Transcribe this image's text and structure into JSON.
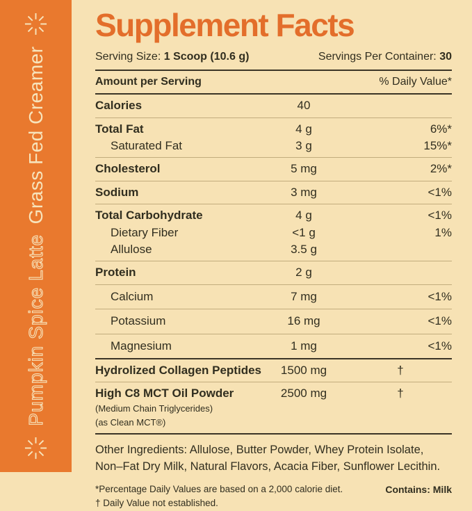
{
  "colors": {
    "accent": "#E9792E",
    "title_orange": "#E36E2B",
    "background": "#F7E2B4",
    "ink": "#312E1F",
    "rule_thin": "#C2AC7D",
    "rule_thick": "#3B3426",
    "sidebar_text": "#F7E4BC"
  },
  "sidebar": {
    "flavor": "Pumpkin Spice Latte",
    "product": "Grass Fed Creamer",
    "star_icon": "starburst-asterisk"
  },
  "header": {
    "title": "Supplement Facts",
    "serving_size_label": "Serving Size:",
    "serving_size_value": "1 Scoop (10.6 g)",
    "servings_label": "Servings Per Container:",
    "servings_value": "30"
  },
  "table": {
    "header": {
      "left": "Amount per Serving",
      "right": "% Daily Value*"
    },
    "rows": [
      {
        "name": "Calories",
        "amount": "40",
        "dv": "",
        "bold": true,
        "indent": false,
        "divider_after": "thin"
      },
      {
        "name": "Total Fat",
        "amount": "4 g",
        "dv": "6%*",
        "bold": true,
        "indent": false,
        "divider_after": "none"
      },
      {
        "name": "Saturated Fat",
        "amount": "3 g",
        "dv": "15%*",
        "bold": false,
        "indent": true,
        "divider_after": "thin"
      },
      {
        "name": "Cholesterol",
        "amount": "5 mg",
        "dv": "2%*",
        "bold": true,
        "indent": false,
        "divider_after": "thin"
      },
      {
        "name": "Sodium",
        "amount": "3 mg",
        "dv": "<1%",
        "bold": true,
        "indent": false,
        "divider_after": "thin"
      },
      {
        "name": "Total Carbohydrate",
        "amount": "4 g",
        "dv": "<1%",
        "bold": true,
        "indent": false,
        "divider_after": "none"
      },
      {
        "name": "Dietary Fiber",
        "amount": "<1 g",
        "dv": "1%",
        "bold": false,
        "indent": true,
        "divider_after": "none"
      },
      {
        "name": "Allulose",
        "amount": "3.5 g",
        "dv": "",
        "bold": false,
        "indent": true,
        "divider_after": "thin"
      },
      {
        "name": "Protein",
        "amount": "2 g",
        "dv": "",
        "bold": true,
        "indent": false,
        "divider_after": "thin"
      },
      {
        "name": "Calcium",
        "amount": "7 mg",
        "dv": "<1%",
        "bold": false,
        "indent": true,
        "divider_after": "thin",
        "roomy": true
      },
      {
        "name": "Potassium",
        "amount": "16 mg",
        "dv": "<1%",
        "bold": false,
        "indent": true,
        "divider_after": "thin",
        "roomy": true
      },
      {
        "name": "Magnesium",
        "amount": "1 mg",
        "dv": "<1%",
        "bold": false,
        "indent": true,
        "divider_after": "thick",
        "roomy": true
      },
      {
        "name": "Hydrolized Collagen Peptides",
        "amount": "1500 mg",
        "dv": "†",
        "bold": true,
        "indent": false,
        "divider_after": "thin"
      },
      {
        "name": "High C8 MCT Oil Powder",
        "amount": "2500 mg",
        "dv": "†",
        "bold": true,
        "indent": false,
        "divider_after": "thick",
        "sub": [
          "(Medium Chain Triglycerides)",
          "(as Clean MCT®)"
        ]
      }
    ]
  },
  "other_ingredients": "Other Ingredients: Allulose, Butter Powder, Whey Protein Isolate, Non–Fat Dry Milk, Natural Flavors, Acacia Fiber, Sunflower Lecithin.",
  "footnotes": {
    "line1": "*Percentage Daily Values are based on a 2,000 calorie diet.",
    "line2": "† Daily Value not established.",
    "contains": "Contains: Milk"
  }
}
